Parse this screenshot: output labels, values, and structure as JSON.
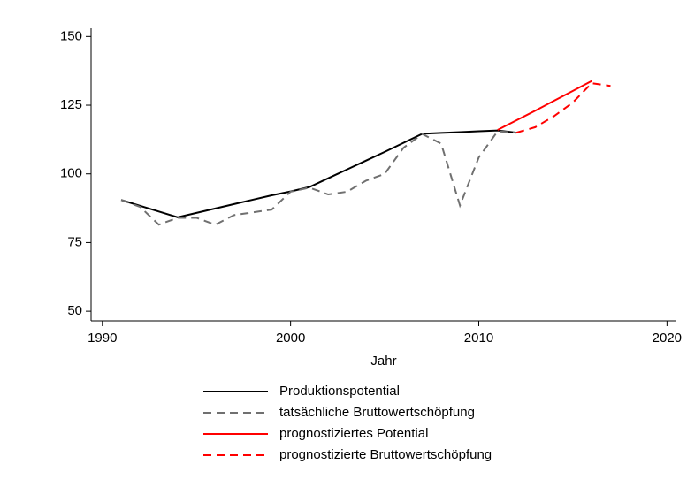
{
  "chart_data": {
    "type": "line",
    "x_label": "Jahr",
    "x": [
      1991,
      1992,
      1993,
      1994,
      1995,
      1996,
      1997,
      1998,
      1999,
      2000,
      2001,
      2002,
      2003,
      2004,
      2005,
      2006,
      2007,
      2008,
      2009,
      2010,
      2011,
      2012,
      2013,
      2014,
      2015,
      2016,
      2017
    ],
    "xlim": [
      1989.4,
      2020.5
    ],
    "xticks": [
      1990,
      2000,
      2010,
      2020
    ],
    "ylim": [
      46.5,
      153
    ],
    "yticks": [
      50,
      75,
      100,
      125,
      150
    ],
    "series": [
      {
        "name": "Produktionspotential",
        "color": "#000000",
        "dash": "solid",
        "values": [
          90.5,
          88.4,
          86.3,
          84.2,
          85.8,
          87.4,
          89,
          90.6,
          92.2,
          93.6,
          95.2,
          98.4,
          101.6,
          104.8,
          108,
          111.3,
          114.6,
          114.9,
          115.2,
          115.5,
          115.8,
          115,
          null,
          null,
          null,
          null,
          null
        ]
      },
      {
        "name": "tatsächliche Bruttowertschöpfung",
        "color": "#707070",
        "dash": "dashed",
        "values": [
          90.5,
          88,
          81.5,
          84,
          84,
          81.5,
          85,
          86,
          87,
          93.5,
          95,
          92.5,
          93.5,
          97.5,
          100,
          109.5,
          114.5,
          111,
          88.5,
          106,
          115.5,
          115,
          null,
          null,
          null,
          null,
          null
        ]
      },
      {
        "name": "prognostiziertes Potential",
        "color": "#ff0000",
        "dash": "solid",
        "values": [
          null,
          null,
          null,
          null,
          null,
          null,
          null,
          null,
          null,
          null,
          null,
          null,
          null,
          null,
          null,
          null,
          null,
          null,
          null,
          null,
          116,
          119.5,
          123,
          126.6,
          130.2,
          133.8,
          null
        ]
      },
      {
        "name": "prognostizierte Bruttowertschöpfung",
        "color": "#ff0000",
        "dash": "dashed",
        "values": [
          null,
          null,
          null,
          null,
          null,
          null,
          null,
          null,
          null,
          null,
          null,
          null,
          null,
          null,
          null,
          null,
          null,
          null,
          null,
          null,
          null,
          115,
          117,
          121,
          126,
          133,
          132
        ]
      }
    ]
  }
}
